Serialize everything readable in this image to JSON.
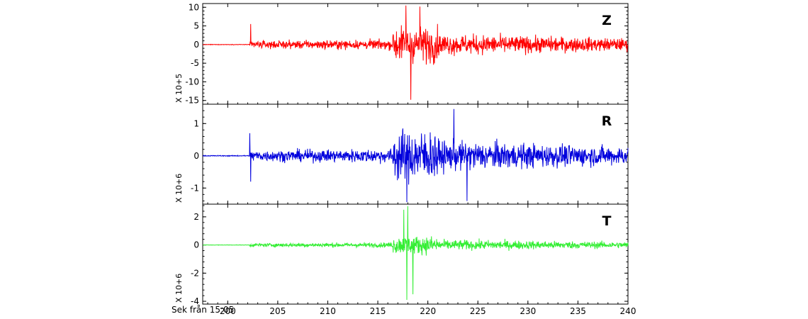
{
  "chart_data": [
    {
      "type": "line",
      "channel": "Z",
      "title": "Z",
      "color": "#ff0000",
      "ylabel": "X 10+5",
      "xlim": [
        197.5,
        240
      ],
      "ylim": [
        -16,
        11
      ],
      "yticks": [
        10,
        5,
        0,
        -5,
        -10,
        -15
      ],
      "event_onset_x": 202.2,
      "spike_peaks": [
        {
          "x": 202.3,
          "y": 5.5
        },
        {
          "x": 217.8,
          "y": 10.5
        },
        {
          "x": 218.3,
          "y": -14.8
        },
        {
          "x": 219.2,
          "y": 10.2
        }
      ],
      "noise_amplitude_pre": 0.1,
      "coda_amplitude": 3
    },
    {
      "type": "line",
      "channel": "R",
      "title": "R",
      "color": "#0000dd",
      "ylabel": "X 10+6",
      "xlim": [
        197.5,
        240
      ],
      "ylim": [
        -1.5,
        1.6
      ],
      "yticks": [
        1,
        0,
        -1
      ],
      "event_onset_x": 202.2,
      "spike_peaks": [
        {
          "x": 202.2,
          "y": 0.7
        },
        {
          "x": 202.3,
          "y": -0.8
        },
        {
          "x": 217.9,
          "y": -1.45
        },
        {
          "x": 222.6,
          "y": 1.45
        },
        {
          "x": 223.9,
          "y": -1.4
        }
      ],
      "noise_amplitude_pre": 0.02,
      "coda_amplitude": 0.5
    },
    {
      "type": "line",
      "channel": "T",
      "title": "T",
      "color": "#33ee33",
      "ylabel": "X 10+6",
      "xlim": [
        197.5,
        240
      ],
      "ylim": [
        -4.2,
        2.9
      ],
      "yticks": [
        2,
        0,
        -2,
        -4
      ],
      "event_onset_x": 202.2,
      "spike_peaks": [
        {
          "x": 217.6,
          "y": 2.5
        },
        {
          "x": 218.0,
          "y": 2.8
        },
        {
          "x": 217.9,
          "y": -3.9
        },
        {
          "x": 218.5,
          "y": -3.5
        }
      ],
      "noise_amplitude_pre": 0.02,
      "coda_amplitude": 0.4
    }
  ],
  "x_axis": {
    "label": "Sek från 15:05",
    "ticks": [
      200,
      205,
      210,
      215,
      220,
      225,
      230,
      235,
      240
    ]
  }
}
